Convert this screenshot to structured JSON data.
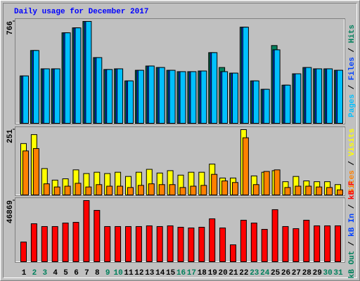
{
  "chart_data": [
    {
      "type": "bar",
      "title": "Daily usage for December 2017",
      "title_color": "#0000ff",
      "ylim": [
        0,
        766
      ],
      "yticks": [
        766
      ],
      "legend_separator": " / ",
      "series": [
        {
          "name": "Hits",
          "color": "#00805c",
          "values": [
            359,
            549,
            412,
            412,
            681,
            718,
            766,
            496,
            407,
            412,
            322,
            401,
            433,
            422,
            401,
            391,
            391,
            396,
            533,
            422,
            380,
            723,
            322,
            259,
            586,
            290,
            375,
            422,
            412,
            412,
            401
          ]
        },
        {
          "name": "Files",
          "color": "#0040ff",
          "values": [
            359,
            549,
            412,
            412,
            681,
            718,
            766,
            496,
            407,
            412,
            322,
            401,
            433,
            422,
            401,
            391,
            391,
            396,
            533,
            391,
            380,
            723,
            322,
            259,
            554,
            290,
            375,
            422,
            412,
            412,
            401
          ]
        },
        {
          "name": "Pages",
          "color": "#00c0ff",
          "values": [
            359,
            549,
            412,
            412,
            681,
            718,
            766,
            496,
            407,
            412,
            322,
            401,
            433,
            422,
            401,
            391,
            391,
            396,
            533,
            391,
            380,
            723,
            322,
            259,
            554,
            290,
            375,
            422,
            412,
            412,
            401
          ]
        }
      ]
    },
    {
      "type": "bar",
      "ylim": [
        0,
        251
      ],
      "yticks": [
        251
      ],
      "legend_separator": " / ",
      "series": [
        {
          "name": "Visits",
          "color": "#ffff00",
          "values": [
            198,
            232,
            103,
            59,
            64,
            98,
            84,
            89,
            84,
            89,
            73,
            89,
            100,
            86,
            95,
            78,
            89,
            89,
            120,
            67,
            67,
            251,
            75,
            89,
            95,
            53,
            73,
            56,
            53,
            53,
            42
          ]
        },
        {
          "name": "Sites",
          "color": "#ff8000",
          "values": [
            170,
            179,
            45,
            33,
            36,
            47,
            33,
            42,
            36,
            36,
            31,
            39,
            45,
            42,
            42,
            31,
            36,
            39,
            81,
            56,
            50,
            220,
            42,
            92,
            98,
            31,
            36,
            36,
            33,
            31,
            22
          ]
        }
      ]
    },
    {
      "type": "bar",
      "ylim": [
        0,
        46869
      ],
      "yticks": [
        46869
      ],
      "legend_separator": " / ",
      "categories": [
        "1",
        "2",
        "3",
        "4",
        "5",
        "6",
        "7",
        "8",
        "9",
        "10",
        "11",
        "12",
        "13",
        "14",
        "15",
        "16",
        "17",
        "18",
        "19",
        "20",
        "21",
        "22",
        "23",
        "24",
        "25",
        "26",
        "27",
        "28",
        "29",
        "30",
        "31"
      ],
      "category_colors": [
        "#000000",
        "#00805c",
        "#00805c",
        "#000000",
        "#000000",
        "#000000",
        "#000000",
        "#000000",
        "#00805c",
        "#00805c",
        "#000000",
        "#000000",
        "#000000",
        "#000000",
        "#000000",
        "#00805c",
        "#00805c",
        "#000000",
        "#000000",
        "#000000",
        "#000000",
        "#000000",
        "#00805c",
        "#00805c",
        "#000000",
        "#000000",
        "#000000",
        "#000000",
        "#000000",
        "#00805c",
        "#00805c"
      ],
      "series": [
        {
          "name": "kB F",
          "color": "#ff0000",
          "values": [
            15457,
            29315,
            27183,
            27183,
            29848,
            30381,
            46869,
            39442,
            27183,
            27183,
            27183,
            27183,
            27716,
            27183,
            27716,
            26650,
            26117,
            26650,
            33046,
            26117,
            13325,
            31980,
            29848,
            25051,
            39975,
            27183,
            25584,
            31980,
            27716,
            27716,
            27716
          ]
        },
        {
          "name": "kB In",
          "color": "#0040ff"
        },
        {
          "name": "kB Out",
          "color": "#00805c"
        }
      ]
    }
  ]
}
